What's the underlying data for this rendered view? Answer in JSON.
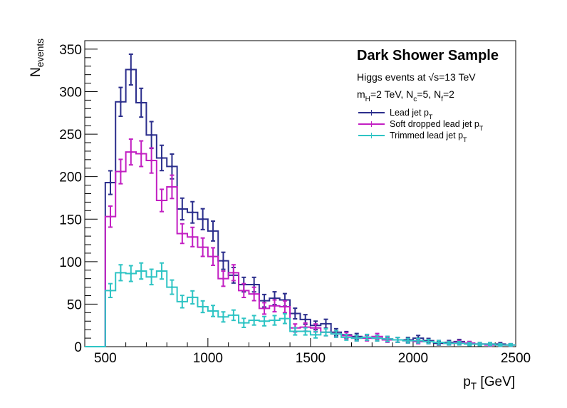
{
  "chart_data": {
    "type": "histogram",
    "title": "Dark Shower Sample",
    "xlabel": "p_T [GeV]",
    "ylabel": "N_events",
    "xlim": [
      400,
      2500
    ],
    "ylim": [
      0,
      360
    ],
    "x_ticks": [
      500,
      1000,
      1500,
      2000,
      2500
    ],
    "y_ticks": [
      0,
      50,
      100,
      150,
      200,
      250,
      300,
      350
    ],
    "bin_width": 50,
    "info_lines": [
      "Higgs events at √s=13 TeV",
      "m_H=2 TeV, N_c=5, N_f=2"
    ],
    "grid": false,
    "legend_position": "top-right",
    "series": [
      {
        "name": "Lead jet p_T",
        "color": "#2b2e8c",
        "bin_starts": [
          500,
          550,
          600,
          650,
          700,
          750,
          800,
          850,
          900,
          950,
          1000,
          1050,
          1100,
          1150,
          1200,
          1250,
          1300,
          1350,
          1400,
          1450,
          1500,
          1550,
          1600,
          1650,
          1700,
          1750,
          1800,
          1850,
          1900,
          1950,
          2000,
          2050,
          2100,
          2150,
          2200,
          2250,
          2300,
          2350,
          2400,
          2450
        ],
        "values": [
          193,
          288,
          326,
          287,
          249,
          222,
          212,
          162,
          158,
          150,
          136,
          101,
          84,
          73,
          73,
          54,
          57,
          55,
          39,
          32,
          25,
          27,
          17,
          14,
          12,
          11,
          10,
          9,
          8,
          8,
          10,
          7,
          4,
          5,
          6,
          4,
          3,
          3,
          3,
          2
        ]
      },
      {
        "name": "Soft dropped lead jet p_T",
        "color": "#c21fc2",
        "bin_starts": [
          500,
          550,
          600,
          650,
          700,
          750,
          800,
          850,
          900,
          950,
          1000,
          1050,
          1100,
          1150,
          1200,
          1250,
          1300,
          1350,
          1400,
          1450,
          1500,
          1550,
          1600,
          1650,
          1700,
          1750,
          1800,
          1850,
          1900,
          1950,
          2000,
          2050,
          2100,
          2150,
          2200,
          2250,
          2300,
          2350,
          2400,
          2450
        ],
        "values": [
          153,
          206,
          229,
          227,
          219,
          172,
          188,
          133,
          129,
          117,
          106,
          80,
          87,
          66,
          62,
          45,
          48,
          47,
          22,
          23,
          22,
          17,
          15,
          13,
          10,
          10,
          12,
          8,
          8,
          7,
          6,
          6,
          5,
          4,
          5,
          4,
          3,
          2,
          2,
          2
        ]
      },
      {
        "name": "Trimmed lead jet p_T",
        "color": "#2ec4c4",
        "bin_starts": [
          500,
          550,
          600,
          650,
          700,
          750,
          800,
          850,
          900,
          950,
          1000,
          1050,
          1100,
          1150,
          1200,
          1250,
          1300,
          1350,
          1400,
          1450,
          1500,
          1550,
          1600,
          1650,
          1700,
          1750,
          1800,
          1850,
          1900,
          1950,
          2000,
          2050,
          2100,
          2150,
          2200,
          2250,
          2300,
          2350,
          2400,
          2450
        ],
        "values": [
          66,
          87,
          86,
          89,
          82,
          89,
          70,
          53,
          58,
          47,
          42,
          35,
          37,
          28,
          31,
          30,
          31,
          33,
          18,
          18,
          14,
          17,
          15,
          11,
          10,
          11,
          10,
          9,
          8,
          7,
          7,
          6,
          5,
          4,
          4,
          3,
          3,
          3,
          2,
          2
        ]
      }
    ]
  }
}
